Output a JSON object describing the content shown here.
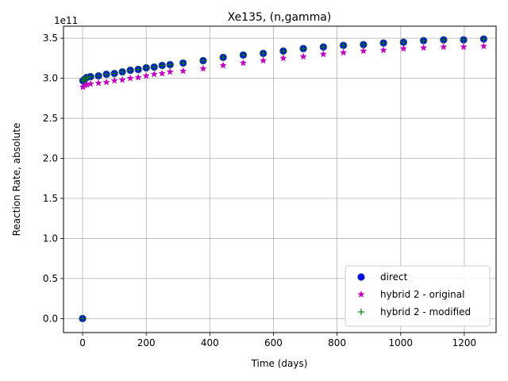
{
  "chart_data": {
    "type": "scatter",
    "title": "Xe135, (n,gamma)",
    "xlabel": "Time (days)",
    "ylabel": "Reaction Rate, absolute",
    "offset_label": "1e11",
    "xlim": [
      -60,
      1300
    ],
    "ylim": [
      -0.175,
      3.65
    ],
    "y_scale_exponent": 11,
    "x_ticks": [
      0,
      200,
      400,
      600,
      800,
      1000,
      1200
    ],
    "x_tick_labels": [
      "0",
      "200",
      "400",
      "600",
      "800",
      "1000",
      "1200"
    ],
    "y_ticks": [
      0,
      0.5,
      1.0,
      1.5,
      2.0,
      2.5,
      3.0,
      3.5
    ],
    "y_tick_labels": [
      "0.0",
      "0.5",
      "1.0",
      "1.5",
      "2.0",
      "2.5",
      "3.0",
      "3.5"
    ],
    "grid": true,
    "legend_position": "lower-right",
    "series": [
      {
        "name": "direct",
        "marker": "circle",
        "color": "#0000ff",
        "edge_color": "#1f4f7f",
        "x": [
          0,
          1,
          7,
          13,
          25,
          50,
          75,
          100,
          125,
          150,
          175,
          200,
          225,
          250,
          275,
          316,
          379,
          442,
          505,
          568,
          631,
          694,
          757,
          820,
          883,
          946,
          1009,
          1072,
          1135,
          1198,
          1261
        ],
        "y": [
          0,
          2.97,
          2.99,
          3.01,
          3.02,
          3.03,
          3.05,
          3.06,
          3.08,
          3.1,
          3.11,
          3.13,
          3.14,
          3.16,
          3.17,
          3.19,
          3.22,
          3.26,
          3.29,
          3.31,
          3.34,
          3.37,
          3.39,
          3.41,
          3.42,
          3.44,
          3.45,
          3.47,
          3.48,
          3.48,
          3.49
        ]
      },
      {
        "name": "hybrid 2 - original",
        "marker": "star",
        "color": "#bf00bf",
        "x": [
          1,
          7,
          13,
          25,
          50,
          75,
          100,
          125,
          150,
          175,
          200,
          225,
          250,
          275,
          316,
          379,
          442,
          505,
          568,
          631,
          694,
          757,
          820,
          883,
          946,
          1009,
          1072,
          1135,
          1198,
          1261
        ],
        "y": [
          2.89,
          2.91,
          2.92,
          2.93,
          2.94,
          2.95,
          2.97,
          2.98,
          3.0,
          3.01,
          3.03,
          3.05,
          3.06,
          3.08,
          3.09,
          3.12,
          3.16,
          3.19,
          3.22,
          3.25,
          3.27,
          3.3,
          3.32,
          3.34,
          3.35,
          3.37,
          3.38,
          3.39,
          3.39,
          3.4
        ]
      },
      {
        "name": "hybrid 2 - modified",
        "marker": "plus",
        "color": "#008000",
        "x": [
          0,
          1,
          7,
          13,
          25,
          50,
          75,
          100,
          125,
          150,
          175,
          200,
          225,
          250,
          275,
          316,
          379,
          442,
          505,
          568,
          631,
          694,
          757,
          820,
          883,
          946,
          1009,
          1072,
          1135,
          1198,
          1261
        ],
        "y": [
          0,
          2.97,
          2.99,
          3.01,
          3.02,
          3.03,
          3.05,
          3.06,
          3.08,
          3.1,
          3.11,
          3.13,
          3.14,
          3.16,
          3.17,
          3.19,
          3.22,
          3.26,
          3.29,
          3.31,
          3.34,
          3.37,
          3.39,
          3.41,
          3.42,
          3.44,
          3.45,
          3.47,
          3.48,
          3.48,
          3.49
        ]
      }
    ]
  }
}
